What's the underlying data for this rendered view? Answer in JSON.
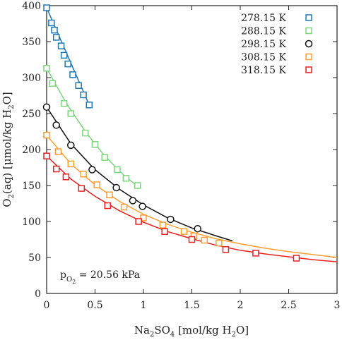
{
  "chart_data": {
    "type": "scatter",
    "xlim": [
      0,
      3
    ],
    "ylim": [
      0,
      400
    ],
    "x_ticks": [
      0,
      0.5,
      1,
      1.5,
      2,
      2.5,
      3
    ],
    "x_tick_labels": [
      "0",
      "0.5",
      "1",
      "1.5",
      "2",
      "2.5",
      "3"
    ],
    "y_ticks": [
      0,
      50,
      100,
      150,
      200,
      250,
      300,
      350,
      400
    ],
    "y_tick_labels": [
      "0",
      "50",
      "100",
      "150",
      "200",
      "250",
      "300",
      "350",
      "400"
    ],
    "xlabel": {
      "main": "Na",
      "sub1": "2",
      "mid": "SO",
      "sub2": "4",
      "rest": " [mol/kg H",
      "sub3": "2",
      "end": "O]"
    },
    "ylabel": {
      "main": "O",
      "sub1": "2",
      "mid": "(aq) [μmol/kg H",
      "sub2": "2",
      "end": "O]"
    },
    "annotation": {
      "p": "p",
      "sub": "O",
      "subsub": "2",
      "rest": " = 20.56 kPa"
    },
    "grid": false,
    "legend_position": "top-right",
    "series": [
      {
        "name": "278.15 K",
        "color": "#1f78b4",
        "marker": "square",
        "points": [
          [
            0.0,
            397
          ],
          [
            0.05,
            376
          ],
          [
            0.08,
            366
          ],
          [
            0.1,
            356
          ],
          [
            0.15,
            344
          ],
          [
            0.18,
            331
          ],
          [
            0.22,
            319
          ],
          [
            0.27,
            304
          ],
          [
            0.33,
            289
          ],
          [
            0.38,
            276
          ],
          [
            0.44,
            262
          ]
        ],
        "fit": [
          [
            0.0,
            397
          ],
          [
            0.44,
            262
          ]
        ]
      },
      {
        "name": "288.15 K",
        "color": "#7ed67e",
        "marker": "square",
        "points": [
          [
            0.0,
            313
          ],
          [
            0.06,
            292
          ],
          [
            0.18,
            264
          ],
          [
            0.25,
            250
          ],
          [
            0.4,
            223
          ],
          [
            0.5,
            207
          ],
          [
            0.6,
            189
          ],
          [
            0.73,
            172
          ],
          [
            0.82,
            160
          ],
          [
            0.94,
            150
          ]
        ],
        "fit": [
          [
            0.0,
            313
          ],
          [
            0.2,
            265
          ],
          [
            0.4,
            225
          ],
          [
            0.6,
            191
          ],
          [
            0.8,
            164
          ],
          [
            0.94,
            149
          ]
        ]
      },
      {
        "name": "298.15 K",
        "color": "#111111",
        "marker": "circle",
        "points": [
          [
            0.0,
            259
          ],
          [
            0.1,
            234
          ],
          [
            0.25,
            206
          ],
          [
            0.47,
            172
          ],
          [
            0.72,
            147
          ],
          [
            0.89,
            129
          ],
          [
            0.99,
            121
          ],
          [
            1.28,
            103
          ],
          [
            1.56,
            90
          ]
        ],
        "fit": [
          [
            0.0,
            259
          ],
          [
            0.25,
            208
          ],
          [
            0.5,
            172
          ],
          [
            0.75,
            145
          ],
          [
            1.0,
            123
          ],
          [
            1.25,
            105
          ],
          [
            1.5,
            91
          ],
          [
            1.75,
            80
          ],
          [
            1.92,
            73
          ]
        ]
      },
      {
        "name": "308.15 K",
        "color": "#ff9d2e",
        "marker": "square",
        "points": [
          [
            0.0,
            220
          ],
          [
            0.12,
            197
          ],
          [
            0.25,
            180
          ],
          [
            0.38,
            166
          ],
          [
            0.52,
            151
          ],
          [
            0.65,
            137
          ],
          [
            0.8,
            120
          ],
          [
            1.0,
            105
          ],
          [
            1.2,
            95
          ],
          [
            1.42,
            86
          ],
          [
            1.52,
            80
          ],
          [
            1.63,
            74
          ],
          [
            1.78,
            70
          ]
        ],
        "fit": [
          [
            0.0,
            220
          ],
          [
            0.25,
            180
          ],
          [
            0.5,
            151
          ],
          [
            0.75,
            128
          ],
          [
            1.0,
            110
          ],
          [
            1.25,
            96
          ],
          [
            1.5,
            85
          ],
          [
            1.75,
            76
          ],
          [
            2.0,
            69
          ],
          [
            2.25,
            63
          ],
          [
            2.5,
            58
          ],
          [
            2.75,
            54
          ],
          [
            3.0,
            50
          ]
        ]
      },
      {
        "name": "318.15 K",
        "color": "#ea1f1f",
        "marker": "square",
        "points": [
          [
            0.0,
            191
          ],
          [
            0.1,
            173
          ],
          [
            0.2,
            162
          ],
          [
            0.36,
            146
          ],
          [
            0.63,
            122
          ],
          [
            0.95,
            100
          ],
          [
            1.22,
            86
          ],
          [
            1.5,
            75
          ],
          [
            1.85,
            61
          ],
          [
            2.16,
            56
          ],
          [
            2.58,
            49
          ]
        ],
        "fit": [
          [
            0.0,
            191
          ],
          [
            0.25,
            159
          ],
          [
            0.5,
            135
          ],
          [
            0.75,
            115
          ],
          [
            1.0,
            99
          ],
          [
            1.25,
            86
          ],
          [
            1.5,
            76
          ],
          [
            1.75,
            67
          ],
          [
            2.0,
            60
          ],
          [
            2.25,
            55
          ],
          [
            2.5,
            51
          ],
          [
            2.75,
            47
          ],
          [
            3.0,
            44
          ]
        ]
      }
    ]
  }
}
